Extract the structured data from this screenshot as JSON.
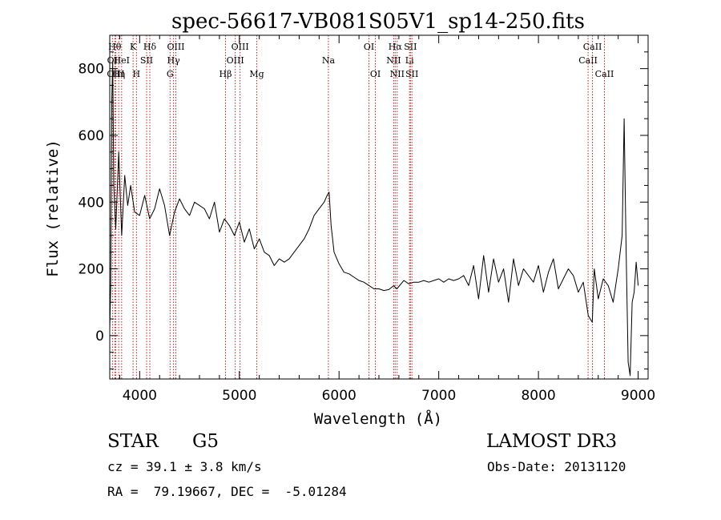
{
  "chart_data": {
    "type": "line",
    "title": "spec-56617-VB081S05V1_sp14-250.fits",
    "xlabel": "Wavelength (Å)",
    "ylabel": "Flux (relative)",
    "xlim": [
      3700,
      9100
    ],
    "ylim": [
      -130,
      900
    ],
    "x_ticks": [
      4000,
      5000,
      6000,
      7000,
      8000,
      9000
    ],
    "y_ticks": [
      0,
      200,
      400,
      600,
      800
    ],
    "grid": false,
    "line_color": "#000000",
    "marker_color": "#b22222",
    "series": [
      {
        "name": "flux",
        "x": [
          3700,
          3710,
          3720,
          3730,
          3740,
          3760,
          3790,
          3820,
          3850,
          3880,
          3910,
          3950,
          4000,
          4050,
          4100,
          4150,
          4200,
          4250,
          4300,
          4350,
          4400,
          4450,
          4500,
          4550,
          4600,
          4650,
          4700,
          4750,
          4800,
          4850,
          4900,
          4950,
          5000,
          5050,
          5100,
          5150,
          5200,
          5250,
          5300,
          5350,
          5400,
          5450,
          5500,
          5550,
          5600,
          5650,
          5700,
          5750,
          5800,
          5850,
          5880,
          5900,
          5920,
          5950,
          6000,
          6050,
          6100,
          6150,
          6200,
          6250,
          6300,
          6350,
          6400,
          6450,
          6500,
          6550,
          6563,
          6580,
          6650,
          6700,
          6750,
          6800,
          6850,
          6900,
          6950,
          7000,
          7050,
          7100,
          7150,
          7200,
          7250,
          7300,
          7350,
          7400,
          7450,
          7500,
          7550,
          7600,
          7650,
          7700,
          7750,
          7800,
          7850,
          7900,
          7950,
          8000,
          8050,
          8100,
          8150,
          8200,
          8250,
          8300,
          8350,
          8400,
          8450,
          8500,
          8540,
          8560,
          8600,
          8650,
          8700,
          8750,
          8800,
          8840,
          8860,
          8880,
          8900,
          8920,
          8940,
          8960,
          8980,
          9000
        ],
        "y": [
          20,
          150,
          700,
          820,
          450,
          320,
          550,
          300,
          480,
          390,
          450,
          370,
          360,
          420,
          350,
          380,
          440,
          390,
          300,
          370,
          410,
          380,
          360,
          400,
          390,
          380,
          350,
          400,
          310,
          350,
          330,
          300,
          340,
          280,
          320,
          260,
          290,
          250,
          240,
          210,
          230,
          220,
          230,
          250,
          270,
          290,
          320,
          360,
          380,
          400,
          420,
          430,
          330,
          250,
          215,
          190,
          185,
          175,
          165,
          160,
          150,
          140,
          140,
          135,
          138,
          150,
          145,
          140,
          165,
          155,
          160,
          160,
          165,
          160,
          165,
          170,
          160,
          170,
          165,
          170,
          180,
          150,
          210,
          110,
          240,
          130,
          230,
          160,
          200,
          100,
          230,
          150,
          200,
          180,
          160,
          210,
          130,
          190,
          230,
          140,
          170,
          200,
          180,
          130,
          160,
          60,
          40,
          200,
          110,
          170,
          150,
          100,
          200,
          300,
          650,
          250,
          -80,
          -120,
          100,
          130,
          220,
          150
        ]
      }
    ],
    "line_markers": [
      {
        "label": "OI",
        "x": 3727,
        "row": 2
      },
      {
        "label": "Hθ",
        "x": 3750,
        "row": 1
      },
      {
        "label": "OIII",
        "x": 3760,
        "row": 3
      },
      {
        "label": "Hη",
        "x": 3790,
        "row": 3
      },
      {
        "label": "HeI",
        "x": 3819,
        "row": 2
      },
      {
        "label": "K",
        "x": 3934,
        "row": 1
      },
      {
        "label": "H",
        "x": 3968,
        "row": 3
      },
      {
        "label": "SII",
        "x": 4070,
        "row": 2
      },
      {
        "label": "Hδ",
        "x": 4102,
        "row": 1
      },
      {
        "label": "G",
        "x": 4305,
        "row": 3
      },
      {
        "label": "Hγ",
        "x": 4340,
        "row": 2
      },
      {
        "label": "OIII",
        "x": 4363,
        "row": 1
      },
      {
        "label": "Hβ",
        "x": 4861,
        "row": 3
      },
      {
        "label": "OIII",
        "x": 4959,
        "row": 2
      },
      {
        "label": "OIII",
        "x": 5007,
        "row": 1
      },
      {
        "label": "Mg",
        "x": 5175,
        "row": 3
      },
      {
        "label": "Na",
        "x": 5893,
        "row": 2
      },
      {
        "label": "OI",
        "x": 6300,
        "row": 1
      },
      {
        "label": "OI",
        "x": 6364,
        "row": 3
      },
      {
        "label": "NII",
        "x": 6548,
        "row": 2
      },
      {
        "label": "Hα",
        "x": 6563,
        "row": 1
      },
      {
        "label": "NII",
        "x": 6583,
        "row": 3
      },
      {
        "label": "Li",
        "x": 6707,
        "row": 2
      },
      {
        "label": "SII",
        "x": 6716,
        "row": 1
      },
      {
        "label": "SII",
        "x": 6731,
        "row": 3
      },
      {
        "label": "CaII",
        "x": 8498,
        "row": 2
      },
      {
        "label": "CaII",
        "x": 8542,
        "row": 1
      },
      {
        "label": "CaII",
        "x": 8662,
        "row": 3
      }
    ]
  },
  "info": {
    "object_class": "STAR",
    "subclass": "G5",
    "survey": "LAMOST DR3",
    "redshift": "cz = 39.1 ± 3.8 km/s",
    "obs_date": "Obs-Date: 20131120",
    "coords": "RA =  79.19667, DEC =  -5.01284"
  }
}
